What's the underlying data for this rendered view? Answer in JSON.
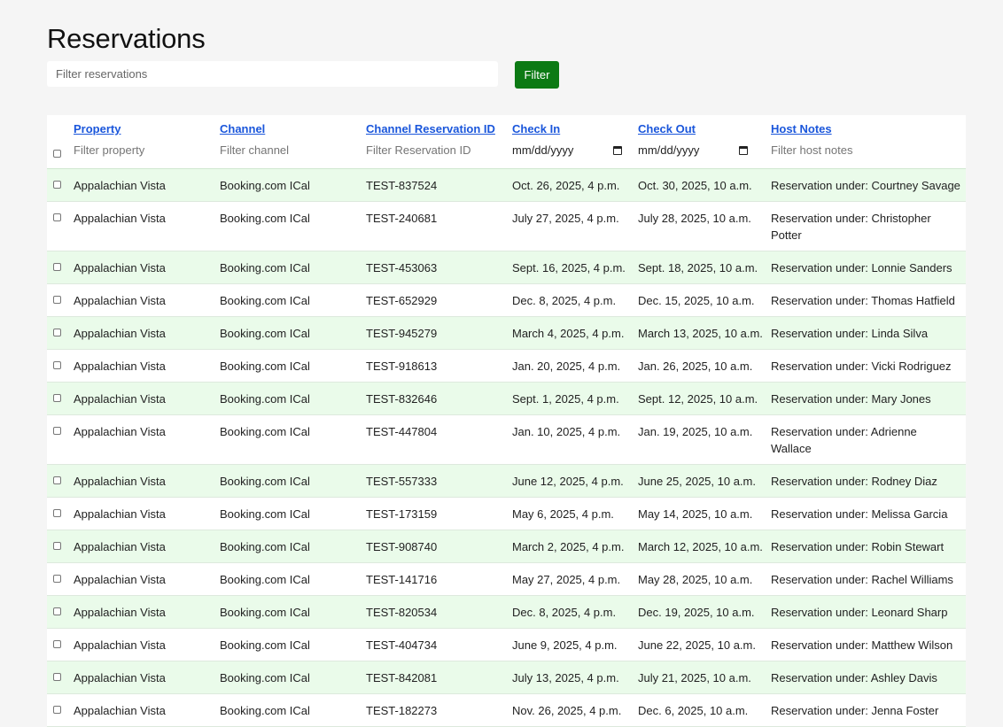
{
  "title": "Reservations",
  "search": {
    "placeholder": "Filter reservations",
    "button_label": "Filter"
  },
  "columns": [
    {
      "label": "Property",
      "filter_placeholder": "Filter property"
    },
    {
      "label": "Channel",
      "filter_placeholder": "Filter channel"
    },
    {
      "label": "Channel Reservation ID",
      "filter_placeholder": "Filter Reservation ID"
    },
    {
      "label": "Check In",
      "date_placeholder": "mm/dd/yyyy"
    },
    {
      "label": "Check Out",
      "date_placeholder": "mm/dd/yyyy"
    },
    {
      "label": "Host Notes",
      "filter_placeholder": "Filter host notes"
    }
  ],
  "rows": [
    {
      "property": "Appalachian Vista",
      "channel": "Booking.com ICal",
      "res_id": "TEST-837524",
      "check_in": "Oct. 26, 2025, 4 p.m.",
      "check_out": "Oct. 30, 2025, 10 a.m.",
      "notes": "Reservation under: Courtney Savage"
    },
    {
      "property": "Appalachian Vista",
      "channel": "Booking.com ICal",
      "res_id": "TEST-240681",
      "check_in": "July 27, 2025, 4 p.m.",
      "check_out": "July 28, 2025, 10 a.m.",
      "notes": "Reservation under: Christopher Potter"
    },
    {
      "property": "Appalachian Vista",
      "channel": "Booking.com ICal",
      "res_id": "TEST-453063",
      "check_in": "Sept. 16, 2025, 4 p.m.",
      "check_out": "Sept. 18, 2025, 10 a.m.",
      "notes": "Reservation under: Lonnie Sanders"
    },
    {
      "property": "Appalachian Vista",
      "channel": "Booking.com ICal",
      "res_id": "TEST-652929",
      "check_in": "Dec. 8, 2025, 4 p.m.",
      "check_out": "Dec. 15, 2025, 10 a.m.",
      "notes": "Reservation under: Thomas Hatfield"
    },
    {
      "property": "Appalachian Vista",
      "channel": "Booking.com ICal",
      "res_id": "TEST-945279",
      "check_in": "March 4, 2025, 4 p.m.",
      "check_out": "March 13, 2025, 10 a.m.",
      "notes": "Reservation under: Linda Silva"
    },
    {
      "property": "Appalachian Vista",
      "channel": "Booking.com ICal",
      "res_id": "TEST-918613",
      "check_in": "Jan. 20, 2025, 4 p.m.",
      "check_out": "Jan. 26, 2025, 10 a.m.",
      "notes": "Reservation under: Vicki Rodriguez"
    },
    {
      "property": "Appalachian Vista",
      "channel": "Booking.com ICal",
      "res_id": "TEST-832646",
      "check_in": "Sept. 1, 2025, 4 p.m.",
      "check_out": "Sept. 12, 2025, 10 a.m.",
      "notes": "Reservation under: Mary Jones"
    },
    {
      "property": "Appalachian Vista",
      "channel": "Booking.com ICal",
      "res_id": "TEST-447804",
      "check_in": "Jan. 10, 2025, 4 p.m.",
      "check_out": "Jan. 19, 2025, 10 a.m.",
      "notes": "Reservation under: Adrienne Wallace"
    },
    {
      "property": "Appalachian Vista",
      "channel": "Booking.com ICal",
      "res_id": "TEST-557333",
      "check_in": "June 12, 2025, 4 p.m.",
      "check_out": "June 25, 2025, 10 a.m.",
      "notes": "Reservation under: Rodney Diaz"
    },
    {
      "property": "Appalachian Vista",
      "channel": "Booking.com ICal",
      "res_id": "TEST-173159",
      "check_in": "May 6, 2025, 4 p.m.",
      "check_out": "May 14, 2025, 10 a.m.",
      "notes": "Reservation under: Melissa Garcia"
    },
    {
      "property": "Appalachian Vista",
      "channel": "Booking.com ICal",
      "res_id": "TEST-908740",
      "check_in": "March 2, 2025, 4 p.m.",
      "check_out": "March 12, 2025, 10 a.m.",
      "notes": "Reservation under: Robin Stewart"
    },
    {
      "property": "Appalachian Vista",
      "channel": "Booking.com ICal",
      "res_id": "TEST-141716",
      "check_in": "May 27, 2025, 4 p.m.",
      "check_out": "May 28, 2025, 10 a.m.",
      "notes": "Reservation under: Rachel Williams"
    },
    {
      "property": "Appalachian Vista",
      "channel": "Booking.com ICal",
      "res_id": "TEST-820534",
      "check_in": "Dec. 8, 2025, 4 p.m.",
      "check_out": "Dec. 19, 2025, 10 a.m.",
      "notes": "Reservation under: Leonard Sharp"
    },
    {
      "property": "Appalachian Vista",
      "channel": "Booking.com ICal",
      "res_id": "TEST-404734",
      "check_in": "June 9, 2025, 4 p.m.",
      "check_out": "June 22, 2025, 10 a.m.",
      "notes": "Reservation under: Matthew Wilson"
    },
    {
      "property": "Appalachian Vista",
      "channel": "Booking.com ICal",
      "res_id": "TEST-842081",
      "check_in": "July 13, 2025, 4 p.m.",
      "check_out": "July 21, 2025, 10 a.m.",
      "notes": "Reservation under: Ashley Davis"
    },
    {
      "property": "Appalachian Vista",
      "channel": "Booking.com ICal",
      "res_id": "TEST-182273",
      "check_in": "Nov. 26, 2025, 4 p.m.",
      "check_out": "Dec. 6, 2025, 10 a.m.",
      "notes": "Reservation under: Jenna Foster"
    }
  ]
}
